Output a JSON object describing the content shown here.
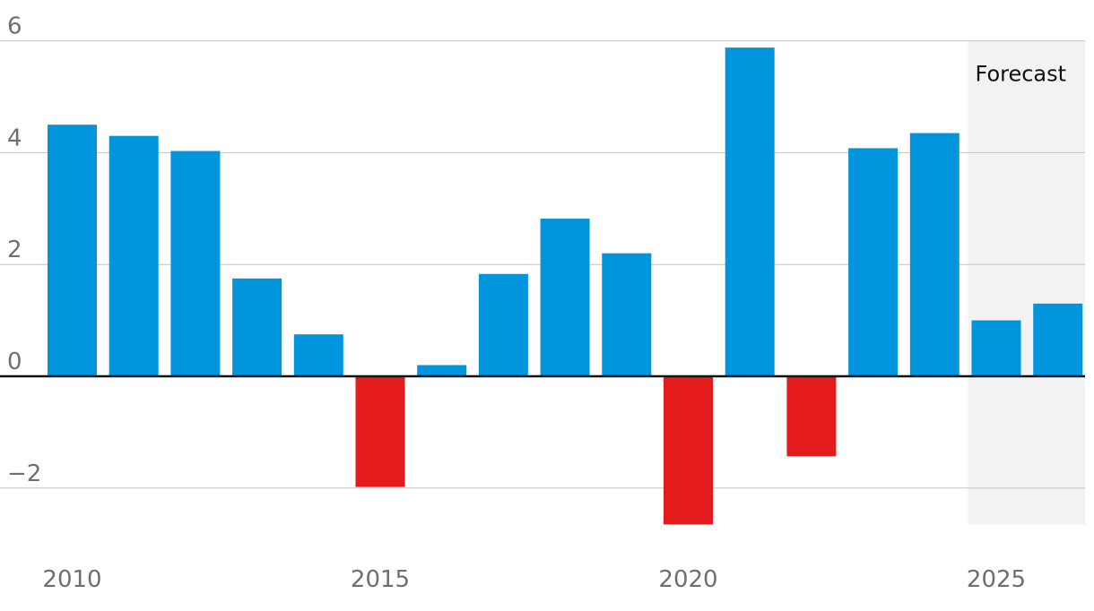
{
  "chart_data": {
    "type": "bar",
    "title": "",
    "xlabel": "",
    "ylabel": "",
    "x": [
      2010,
      2011,
      2012,
      2013,
      2014,
      2015,
      2016,
      2017,
      2018,
      2019,
      2020,
      2021,
      2022,
      2023,
      2024,
      2025,
      2026
    ],
    "values": [
      4.5,
      4.3,
      4.03,
      1.75,
      0.75,
      -1.98,
      0.2,
      1.83,
      2.82,
      2.2,
      -2.65,
      5.88,
      -1.43,
      4.08,
      4.35,
      1.0,
      1.3
    ],
    "ylim": [
      -2.65,
      6
    ],
    "yticks": [
      -2,
      0,
      2,
      4,
      6
    ],
    "ytick_labels": [
      "−2",
      "0",
      "2",
      "4",
      "6"
    ],
    "xtick_years": [
      2010,
      2015,
      2020,
      2025
    ],
    "xtick_labels": [
      "2010",
      "2015",
      "2020",
      "2025"
    ],
    "forecast": {
      "label": "Forecast",
      "from_year": 2025,
      "to_year": 2026
    },
    "colors": {
      "positive": "#0095dc",
      "negative": "#e31b1d",
      "forecast_shade": "#f2f2f2",
      "grid": "#c4c4c4",
      "zero_line": "#111111"
    },
    "grid": true,
    "legend": "none"
  }
}
